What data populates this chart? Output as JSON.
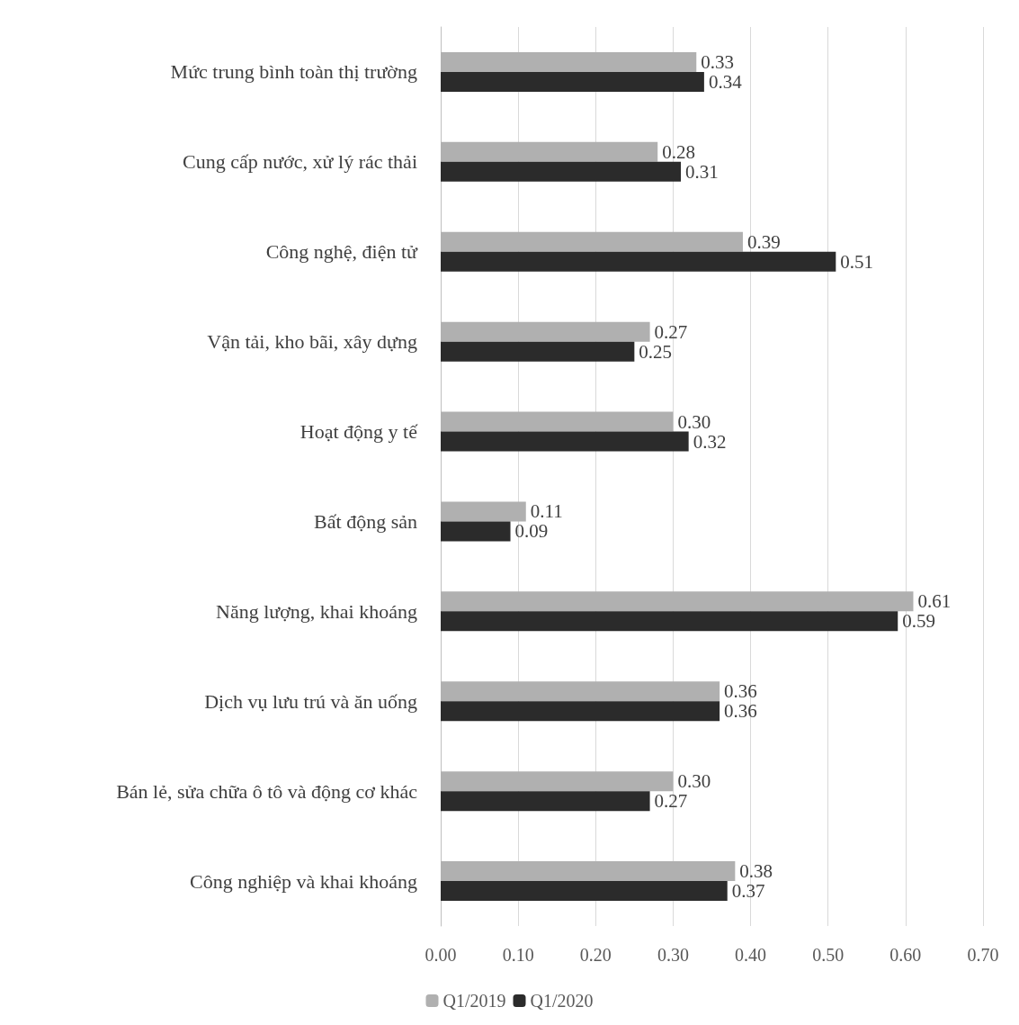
{
  "chart_data": {
    "type": "bar",
    "orientation": "horizontal",
    "categories": [
      "Mức trung bình toàn thị trường",
      "Cung cấp nước, xử lý rác thải",
      "Công nghệ, điện tử",
      "Vận tải, kho bãi, xây dựng",
      "Hoạt động y tế",
      "Bất động sản",
      "Năng lượng, khai khoáng",
      "Dịch vụ lưu trú và ăn uống",
      "Bán lẻ, sửa chữa ô tô và động cơ khác",
      "Công nghiệp và khai khoáng"
    ],
    "series": [
      {
        "name": "Q1/2019",
        "color": "#b0b0b0",
        "values": [
          0.33,
          0.28,
          0.39,
          0.27,
          0.3,
          0.11,
          0.61,
          0.36,
          0.3,
          0.38
        ],
        "value_labels": [
          "0.33",
          "0.28",
          "0.39",
          "0.27",
          "0.30",
          "0.11",
          "0.61",
          "0.36",
          "0.30",
          "0.38"
        ]
      },
      {
        "name": "Q1/2020",
        "color": "#2b2b2b",
        "values": [
          0.34,
          0.31,
          0.51,
          0.25,
          0.32,
          0.09,
          0.59,
          0.36,
          0.27,
          0.37
        ],
        "value_labels": [
          "0.34",
          "0.31",
          "0.51",
          "0.25",
          "0.32",
          "0.09",
          "0.59",
          "0.36",
          "0.27",
          "0.37"
        ]
      }
    ],
    "xlim": [
      0,
      0.7
    ],
    "xticks": [
      {
        "value": 0,
        "label": "0.00"
      },
      {
        "value": 0.1,
        "label": "0.10"
      },
      {
        "value": 0.2,
        "label": "0.20"
      },
      {
        "value": 0.3,
        "label": "0.30"
      },
      {
        "value": 0.4,
        "label": "0.40"
      },
      {
        "value": 0.5,
        "label": "0.50"
      },
      {
        "value": 0.6,
        "label": "0.60"
      },
      {
        "value": 0.7,
        "label": "0.70"
      }
    ],
    "grid": "x",
    "legend": "bottom"
  }
}
